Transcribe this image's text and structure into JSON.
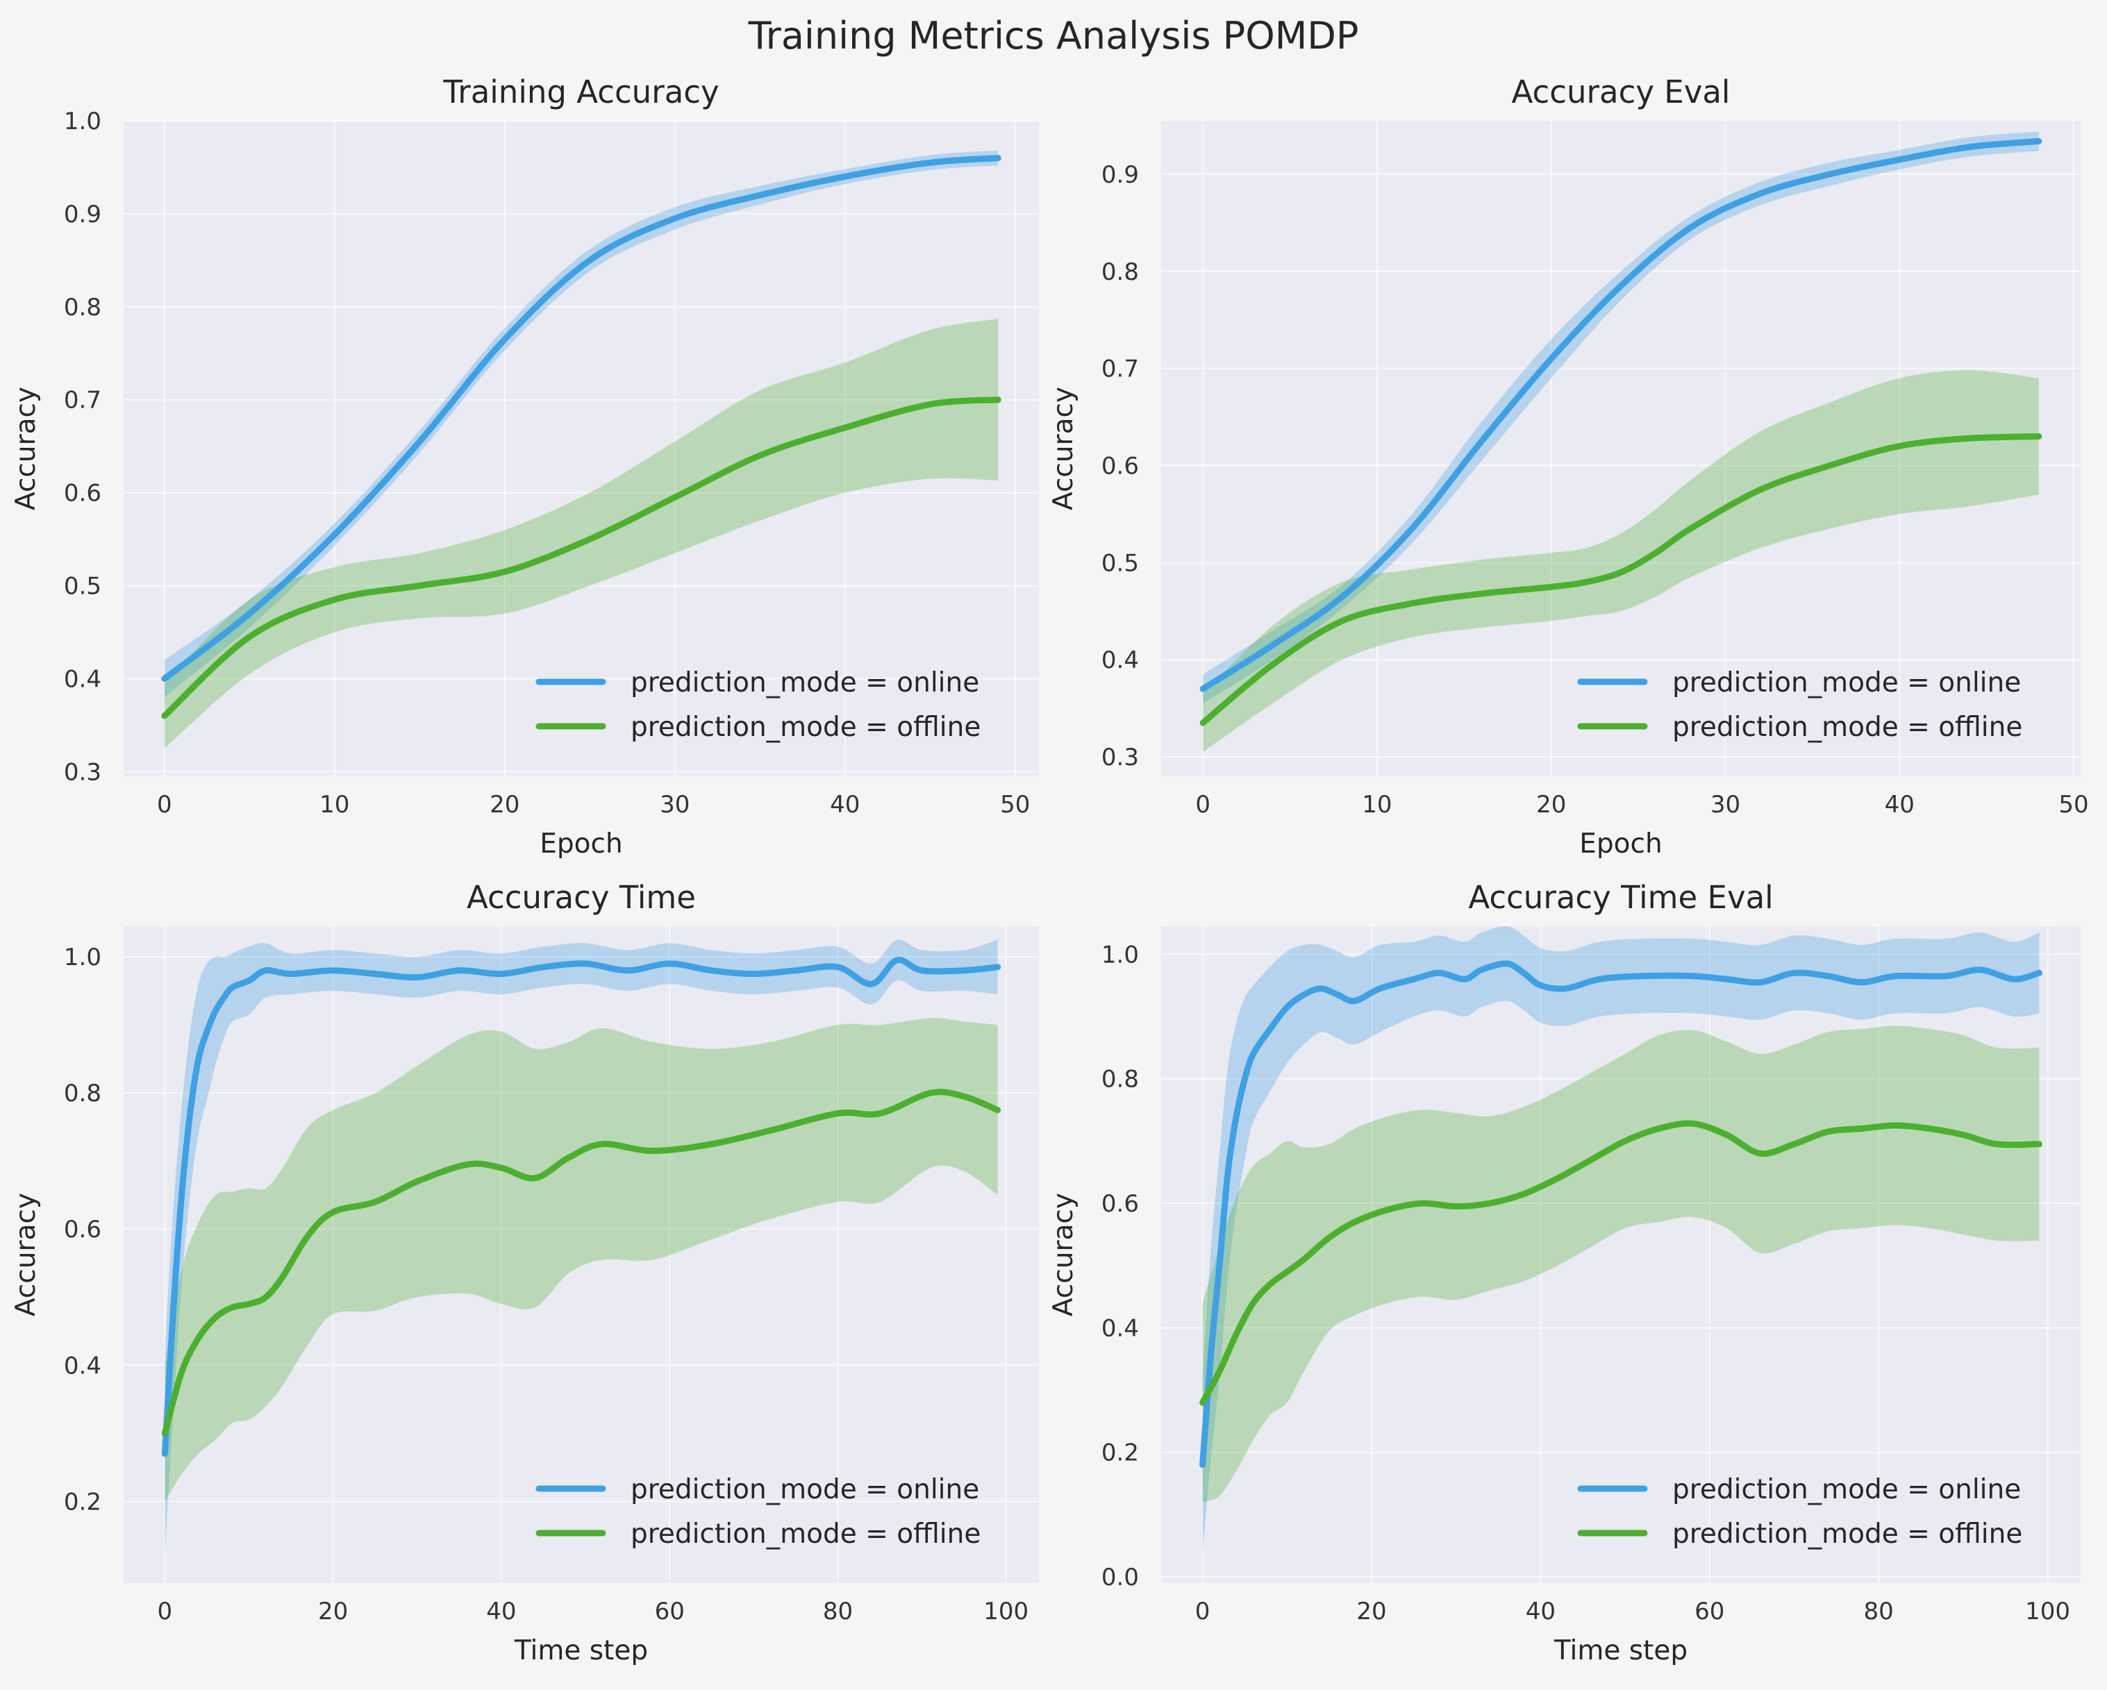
{
  "figure_title": "Training Metrics Analysis POMDP",
  "colors": {
    "online": "#3fa0e3",
    "offline": "#4daf2f",
    "panel_bg": "#eaeaf2",
    "figure_bg": "#f5f5f5"
  },
  "chart_data": [
    {
      "type": "line",
      "title": "Training Accuracy",
      "xlabel": "Epoch",
      "ylabel": "Accuracy",
      "xlim": [
        -2.4,
        51.4
      ],
      "ylim": [
        0.295,
        1.0
      ],
      "xticks": [
        0,
        10,
        20,
        30,
        40,
        50
      ],
      "yticks": [
        0.3,
        0.4,
        0.5,
        0.6,
        0.7,
        0.8,
        0.9,
        1.0
      ],
      "ytick_decimals": 1,
      "grid": true,
      "legend_position": "lower-right",
      "series": [
        {
          "name": "prediction_mode = online",
          "color": "#3fa0e3",
          "x": [
            0,
            5,
            10,
            15,
            20,
            25,
            30,
            35,
            40,
            45,
            49
          ],
          "y": [
            0.4,
            0.47,
            0.555,
            0.655,
            0.765,
            0.85,
            0.895,
            0.92,
            0.94,
            0.955,
            0.96
          ],
          "band": [
            0.02,
            0.015,
            0.012,
            0.012,
            0.012,
            0.012,
            0.012,
            0.01,
            0.008,
            0.008,
            0.008
          ]
        },
        {
          "name": "prediction_mode = offline",
          "color": "#4daf2f",
          "x": [
            0,
            5,
            10,
            15,
            20,
            25,
            30,
            35,
            40,
            45,
            49
          ],
          "y": [
            0.36,
            0.445,
            0.485,
            0.5,
            0.515,
            0.55,
            0.595,
            0.64,
            0.67,
            0.695,
            0.7
          ],
          "band": [
            0.035,
            0.04,
            0.035,
            0.035,
            0.045,
            0.05,
            0.06,
            0.07,
            0.07,
            0.08,
            0.087
          ]
        }
      ]
    },
    {
      "type": "line",
      "title": "Accuracy Eval",
      "xlabel": "Epoch",
      "ylabel": "Accuracy",
      "xlim": [
        -2.4,
        50.4
      ],
      "ylim": [
        0.28,
        0.955
      ],
      "xticks": [
        0,
        10,
        20,
        30,
        40,
        50
      ],
      "yticks": [
        0.3,
        0.4,
        0.5,
        0.6,
        0.7,
        0.8,
        0.9
      ],
      "ytick_decimals": 1,
      "grid": true,
      "legend_position": "lower-right",
      "series": [
        {
          "name": "prediction_mode = online",
          "color": "#3fa0e3",
          "x": [
            0,
            4,
            8,
            12,
            16,
            20,
            24,
            28,
            32,
            36,
            40,
            44,
            48
          ],
          "y": [
            0.37,
            0.415,
            0.465,
            0.535,
            0.625,
            0.71,
            0.785,
            0.845,
            0.88,
            0.9,
            0.915,
            0.928,
            0.934
          ],
          "band": [
            0.015,
            0.015,
            0.012,
            0.015,
            0.02,
            0.02,
            0.015,
            0.012,
            0.012,
            0.012,
            0.01,
            0.01,
            0.01
          ]
        },
        {
          "name": "prediction_mode = offline",
          "color": "#4daf2f",
          "x": [
            0,
            4,
            8,
            12,
            16,
            20,
            22,
            24,
            26,
            28,
            32,
            36,
            40,
            44,
            48
          ],
          "y": [
            0.335,
            0.395,
            0.44,
            0.458,
            0.468,
            0.475,
            0.48,
            0.49,
            0.51,
            0.535,
            0.575,
            0.6,
            0.62,
            0.628,
            0.63
          ],
          "band": [
            0.03,
            0.04,
            0.04,
            0.035,
            0.035,
            0.035,
            0.035,
            0.04,
            0.045,
            0.05,
            0.06,
            0.065,
            0.07,
            0.07,
            0.06
          ]
        }
      ]
    },
    {
      "type": "line",
      "title": "Accuracy Time",
      "xlabel": "Time step",
      "ylabel": "Accuracy",
      "xlim": [
        -4.9,
        103.9
      ],
      "ylim": [
        0.08,
        1.045
      ],
      "xticks": [
        0,
        20,
        40,
        60,
        80,
        100
      ],
      "yticks": [
        0.2,
        0.4,
        0.6,
        0.8,
        1.0
      ],
      "ytick_decimals": 1,
      "grid": true,
      "legend_position": "lower-right",
      "series": [
        {
          "name": "prediction_mode = online",
          "color": "#3fa0e3",
          "x": [
            0,
            1,
            2,
            3,
            4,
            5,
            6,
            7,
            8,
            10,
            12,
            15,
            20,
            25,
            30,
            35,
            40,
            45,
            50,
            55,
            60,
            65,
            70,
            75,
            80,
            84,
            87,
            90,
            95,
            99
          ],
          "y": [
            0.27,
            0.48,
            0.65,
            0.77,
            0.85,
            0.89,
            0.92,
            0.94,
            0.955,
            0.965,
            0.98,
            0.975,
            0.98,
            0.975,
            0.97,
            0.98,
            0.975,
            0.985,
            0.99,
            0.98,
            0.99,
            0.98,
            0.975,
            0.98,
            0.985,
            0.96,
            0.995,
            0.98,
            0.98,
            0.985
          ],
          "band": [
            0.15,
            0.15,
            0.13,
            0.12,
            0.11,
            0.1,
            0.08,
            0.06,
            0.05,
            0.05,
            0.04,
            0.03,
            0.03,
            0.03,
            0.03,
            0.03,
            0.03,
            0.03,
            0.03,
            0.03,
            0.03,
            0.03,
            0.03,
            0.03,
            0.03,
            0.03,
            0.03,
            0.03,
            0.03,
            0.04
          ]
        },
        {
          "name": "prediction_mode = offline",
          "color": "#4daf2f",
          "x": [
            0,
            2,
            4,
            6,
            8,
            10,
            12,
            14,
            17,
            20,
            25,
            30,
            36,
            40,
            44,
            48,
            52,
            58,
            65,
            72,
            80,
            85,
            91,
            95,
            99
          ],
          "y": [
            0.3,
            0.39,
            0.44,
            0.47,
            0.485,
            0.49,
            0.5,
            0.53,
            0.59,
            0.625,
            0.64,
            0.67,
            0.695,
            0.69,
            0.675,
            0.705,
            0.725,
            0.715,
            0.725,
            0.745,
            0.77,
            0.77,
            0.8,
            0.795,
            0.775
          ],
          "band": [
            0.1,
            0.15,
            0.17,
            0.18,
            0.17,
            0.17,
            0.16,
            0.16,
            0.16,
            0.15,
            0.16,
            0.17,
            0.19,
            0.2,
            0.19,
            0.17,
            0.17,
            0.16,
            0.14,
            0.13,
            0.13,
            0.13,
            0.11,
            0.11,
            0.125
          ]
        }
      ]
    },
    {
      "type": "line",
      "title": "Accuracy Time Eval",
      "xlabel": "Time step",
      "ylabel": "Accuracy",
      "xlim": [
        -4.9,
        103.9
      ],
      "ylim": [
        -0.01,
        1.045
      ],
      "xticks": [
        0,
        20,
        40,
        60,
        80,
        100
      ],
      "yticks": [
        0.0,
        0.2,
        0.4,
        0.6,
        0.8,
        1.0
      ],
      "ytick_decimals": 1,
      "grid": true,
      "legend_position": "lower-right",
      "series": [
        {
          "name": "prediction_mode = online",
          "color": "#3fa0e3",
          "x": [
            0,
            1,
            2,
            3,
            4,
            5,
            6,
            8,
            10,
            12,
            14,
            16,
            18,
            21,
            25,
            28,
            31,
            33,
            36,
            38,
            40,
            43,
            47,
            52,
            58,
            62,
            66,
            70,
            74,
            78,
            82,
            88,
            92,
            96,
            99
          ],
          "y": [
            0.18,
            0.36,
            0.5,
            0.65,
            0.74,
            0.8,
            0.84,
            0.88,
            0.915,
            0.935,
            0.945,
            0.935,
            0.925,
            0.945,
            0.96,
            0.97,
            0.96,
            0.975,
            0.985,
            0.97,
            0.95,
            0.945,
            0.96,
            0.965,
            0.965,
            0.96,
            0.955,
            0.97,
            0.965,
            0.955,
            0.965,
            0.965,
            0.975,
            0.96,
            0.97
          ],
          "band": [
            0.14,
            0.17,
            0.18,
            0.17,
            0.15,
            0.13,
            0.11,
            0.1,
            0.09,
            0.08,
            0.07,
            0.07,
            0.07,
            0.07,
            0.06,
            0.06,
            0.06,
            0.06,
            0.06,
            0.06,
            0.06,
            0.06,
            0.06,
            0.06,
            0.06,
            0.06,
            0.06,
            0.06,
            0.06,
            0.06,
            0.06,
            0.06,
            0.06,
            0.06,
            0.065
          ]
        },
        {
          "name": "prediction_mode = offline",
          "color": "#4daf2f",
          "x": [
            0,
            2,
            4,
            6,
            8,
            10,
            12,
            15,
            18,
            22,
            26,
            30,
            34,
            38,
            42,
            46,
            50,
            54,
            58,
            62,
            66,
            70,
            74,
            78,
            82,
            86,
            90,
            94,
            99
          ],
          "y": [
            0.28,
            0.33,
            0.39,
            0.44,
            0.47,
            0.49,
            0.51,
            0.545,
            0.57,
            0.59,
            0.6,
            0.595,
            0.6,
            0.615,
            0.64,
            0.67,
            0.7,
            0.72,
            0.728,
            0.71,
            0.68,
            0.695,
            0.715,
            0.72,
            0.725,
            0.72,
            0.71,
            0.695,
            0.695
          ],
          "band": [
            0.16,
            0.2,
            0.22,
            0.22,
            0.21,
            0.21,
            0.18,
            0.15,
            0.15,
            0.15,
            0.15,
            0.15,
            0.14,
            0.14,
            0.14,
            0.14,
            0.14,
            0.15,
            0.15,
            0.15,
            0.16,
            0.16,
            0.16,
            0.16,
            0.16,
            0.16,
            0.16,
            0.155,
            0.155
          ]
        }
      ]
    }
  ]
}
